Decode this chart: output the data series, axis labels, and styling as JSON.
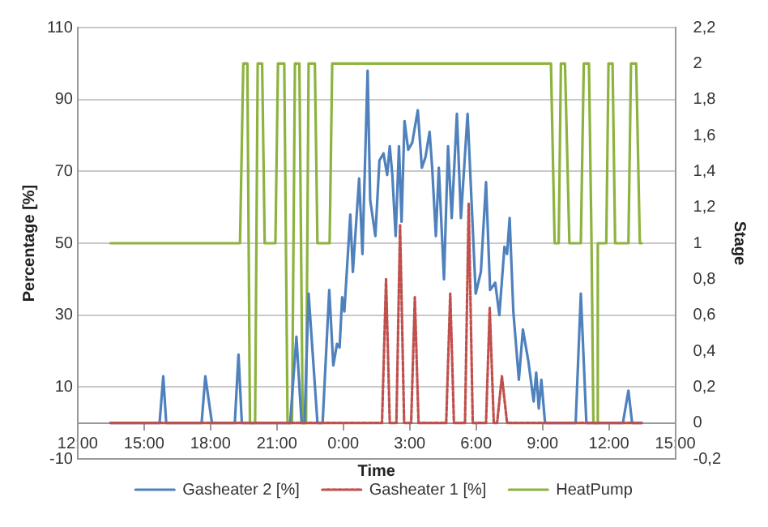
{
  "chart_data": {
    "type": "line",
    "xlabel": "Time",
    "ylabel": "Percentage [%]",
    "y2label": "Stage",
    "xlim": [
      "--01-01T12:00",
      "--01-02T15:00"
    ],
    "xticks": [
      {
        "value": "--01-01T12:00",
        "label": "12:00"
      },
      {
        "value": "--01-01T15:00",
        "label": "15:00"
      },
      {
        "value": "--01-01T18:00",
        "label": "18:00"
      },
      {
        "value": "--01-01T21:00",
        "label": "21:00"
      },
      {
        "value": "--01-02T00:00",
        "label": "0:00"
      },
      {
        "value": "--01-02T03:00",
        "label": "3:00"
      },
      {
        "value": "--01-02T06:00",
        "label": "6:00"
      },
      {
        "value": "--01-02T09:00",
        "label": "9:00"
      },
      {
        "value": "--01-02T12:00",
        "label": "12:00"
      },
      {
        "value": "--01-02T15:00",
        "label": "15:00"
      }
    ],
    "ylim": [
      -10,
      110
    ],
    "yticks": [
      -10,
      10,
      30,
      50,
      70,
      90,
      110
    ],
    "y2lim": [
      -0.2,
      2.2
    ],
    "y2ticks": [
      {
        "value": -0.2,
        "label": "-0,2"
      },
      {
        "value": 0,
        "label": "0"
      },
      {
        "value": 0.2,
        "label": "0,2"
      },
      {
        "value": 0.4,
        "label": "0,4"
      },
      {
        "value": 0.6,
        "label": "0,6"
      },
      {
        "value": 0.8,
        "label": "0,8"
      },
      {
        "value": 1,
        "label": "1"
      },
      {
        "value": 1.2,
        "label": "1,2"
      },
      {
        "value": 1.4,
        "label": "1,4"
      },
      {
        "value": 1.6,
        "label": "1,6"
      },
      {
        "value": 1.8,
        "label": "1,8"
      },
      {
        "value": 2,
        "label": "2"
      },
      {
        "value": 2.2,
        "label": "2,2"
      }
    ],
    "grid": "y",
    "legend": "bottom",
    "marker": "none",
    "series": [
      {
        "name": "Gasheater 2 [%]",
        "color": "#4f81bd",
        "line_style": "solid",
        "x": [
          "--01-01T13:29",
          "--01-01T15:42",
          "--01-01T15:52",
          "--01-01T16:00",
          "--01-01T17:36",
          "--01-01T17:46",
          "--01-01T18:04",
          "--01-01T19:06",
          "--01-01T19:16",
          "--01-01T19:25",
          "--01-01T21:36",
          "--01-01T21:53",
          "--01-01T22:07",
          "--01-01T22:15",
          "--01-01T22:26",
          "--01-01T22:50",
          "--01-01T23:04",
          "--01-01T23:22",
          "--01-01T23:33",
          "--01-01T23:43",
          "--01-01T23:50",
          "--01-01T23:57",
          "--01-02T00:03",
          "--01-02T00:19",
          "--01-02T00:26",
          "--01-02T00:43",
          "--01-02T00:52",
          "--01-02T01:06",
          "--01-02T01:13",
          "--01-02T01:27",
          "--01-02T01:38",
          "--01-02T01:49",
          "--01-02T01:59",
          "--01-02T02:06",
          "--01-02T02:13",
          "--01-02T02:22",
          "--01-02T02:31",
          "--01-02T02:38",
          "--01-02T02:46",
          "--01-02T02:56",
          "--01-02T03:07",
          "--01-02T03:22",
          "--01-02T03:33",
          "--01-02T03:43",
          "--01-02T03:54",
          "--01-02T04:01",
          "--01-02T04:11",
          "--01-02T04:19",
          "--01-02T04:33",
          "--01-02T04:44",
          "--01-02T04:54",
          "--01-02T05:08",
          "--01-02T05:19",
          "--01-02T05:37",
          "--01-02T05:59",
          "--01-02T06:13",
          "--01-02T06:27",
          "--01-02T06:38",
          "--01-02T06:52",
          "--01-02T07:03",
          "--01-02T07:17",
          "--01-02T07:24",
          "--01-02T07:31",
          "--01-02T07:41",
          "--01-02T07:56",
          "--01-02T08:07",
          "--01-02T08:22",
          "--01-02T08:36",
          "--01-02T08:43",
          "--01-02T08:50",
          "--01-02T08:57",
          "--01-02T09:07",
          "--01-02T10:30",
          "--01-02T10:44",
          "--01-02T10:59",
          "--01-02T12:38",
          "--01-02T12:53",
          "--01-02T13:03",
          "--01-02T13:29"
        ],
        "values": [
          0,
          0,
          13,
          0,
          0,
          13,
          0,
          0,
          19,
          0,
          0,
          24,
          0,
          0,
          36,
          0,
          0,
          37,
          16,
          22,
          21,
          35,
          31,
          58,
          42,
          68,
          47,
          98,
          62,
          52,
          73,
          75,
          69,
          77,
          69,
          52,
          77,
          56,
          84,
          76,
          78,
          87,
          71,
          74,
          81,
          71,
          52,
          71,
          40,
          77,
          57,
          86,
          57,
          86,
          36,
          42,
          67,
          37,
          39,
          30,
          49,
          47,
          57,
          31,
          12,
          26,
          17,
          6,
          14,
          4,
          12,
          0,
          0,
          36,
          0,
          0,
          9,
          0,
          0
        ]
      },
      {
        "name": "Gasheater 1 [%]",
        "color": "#c0504d",
        "line_style": "dashed",
        "x": [
          "--01-01T13:29",
          "--01-02T01:45",
          "--01-02T01:56",
          "--01-02T02:06",
          "--01-02T02:24",
          "--01-02T02:34",
          "--01-02T02:45",
          "--01-02T03:04",
          "--01-02T03:14",
          "--01-02T03:24",
          "--01-02T04:39",
          "--01-02T04:50",
          "--01-02T05:00",
          "--01-02T05:30",
          "--01-02T05:40",
          "--01-02T05:51",
          "--01-02T06:27",
          "--01-02T06:37",
          "--01-02T06:48",
          "--01-02T06:57",
          "--01-02T07:10",
          "--01-02T07:24",
          "--01-02T13:29"
        ],
        "values": [
          0,
          0,
          40,
          0,
          0,
          55,
          0,
          0,
          35,
          0,
          0,
          36,
          0,
          0,
          61,
          0,
          0,
          32,
          0,
          0,
          13,
          0,
          0
        ]
      },
      {
        "name": "HeatPump",
        "color": "#8db33f",
        "line_style": "solid",
        "axis": "y2",
        "x": [
          "--01-01T13:29",
          "--01-01T19:20",
          "--01-01T19:29",
          "--01-01T19:40",
          "--01-01T19:47",
          "--01-01T20:01",
          "--01-01T20:08",
          "--01-01T20:20",
          "--01-01T20:27",
          "--01-01T20:56",
          "--01-01T21:03",
          "--01-01T21:20",
          "--01-01T21:29",
          "--01-01T21:41",
          "--01-01T21:49",
          "--01-01T22:01",
          "--01-01T22:10",
          "--01-01T22:19",
          "--01-01T22:26",
          "--01-01T22:43",
          "--01-01T22:50",
          "--01-01T23:23",
          "--01-01T23:30",
          "--01-02T09:23",
          "--01-02T09:33",
          "--01-02T09:44",
          "--01-02T09:50",
          "--01-02T10:01",
          "--01-02T10:13",
          "--01-02T10:44",
          "--01-02T10:52",
          "--01-02T11:06",
          "--01-02T11:13",
          "--01-02T11:18",
          "--01-02T11:27",
          "--01-02T11:30",
          "--01-02T11:53",
          "--01-02T11:59",
          "--01-02T12:10",
          "--01-02T12:17",
          "--01-02T12:53",
          "--01-02T13:00",
          "--01-02T13:14",
          "--01-02T13:24",
          "--01-02T13:29"
        ],
        "values": [
          1,
          1,
          2,
          2,
          0,
          0,
          2,
          2,
          1,
          1,
          2,
          2,
          0,
          0,
          2,
          2,
          0,
          0,
          2,
          2,
          1,
          1,
          2,
          2,
          1,
          1,
          2,
          2,
          1,
          1,
          2,
          2,
          1,
          0,
          0,
          1,
          1,
          2,
          2,
          1,
          1,
          2,
          2,
          1,
          1
        ]
      }
    ]
  }
}
